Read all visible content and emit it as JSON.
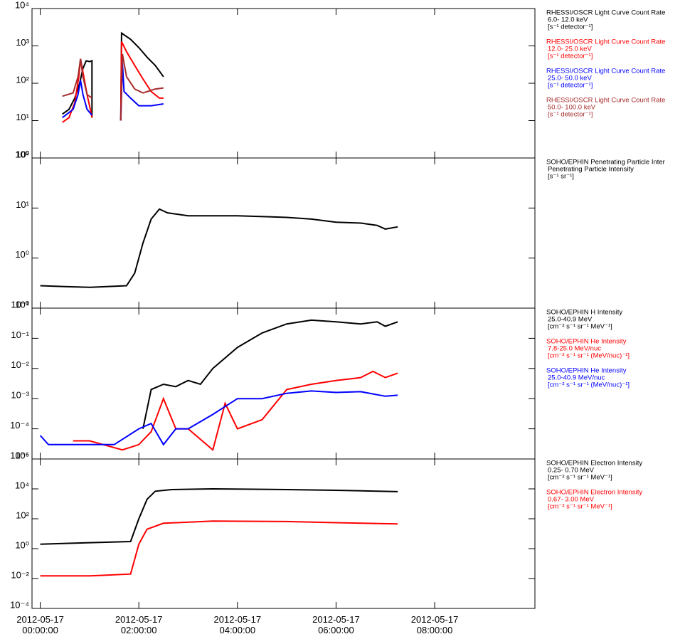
{
  "chart_data": [
    {
      "type": "line",
      "log_scale": true,
      "xlim": [
        "2012-05-16 23:50",
        "2012-05-17 10:02"
      ],
      "ylim": [
        1,
        10000
      ],
      "yticks": [
        {
          "value": 1,
          "label": "10⁰"
        },
        {
          "value": 10,
          "label": "10¹"
        },
        {
          "value": 100,
          "label": "10²"
        },
        {
          "value": 1000,
          "label": "10³"
        },
        {
          "value": 10000,
          "label": "10⁴"
        }
      ],
      "series": [
        {
          "name": "RHESSI/OSCR Light Curve Count Rate",
          "label": "6.0- 12.0 keV",
          "units": "[s⁻¹ detector⁻¹]",
          "color": "#000000",
          "x": [
            "2012-05-17 00:27",
            "2012-05-17 00:35",
            "2012-05-17 00:42",
            "2012-05-17 00:48",
            "2012-05-17 00:52",
            "2012-05-17 00:56",
            "2012-05-17 01:00",
            "2012-05-17 01:03",
            "2012-05-17 01:03",
            "2012-05-17 01:20",
            "2012-05-17 01:38",
            "2012-05-17 01:39",
            "2012-05-17 01:50",
            "2012-05-17 02:00",
            "2012-05-17 02:10",
            "2012-05-17 02:20",
            "2012-05-17 02:30"
          ],
          "values": [
            15,
            20,
            40,
            100,
            250,
            400,
            380,
            400,
            12,
            null,
            10,
            2200,
            1500,
            900,
            500,
            300,
            150
          ]
        },
        {
          "name": "RHESSI/OSCR Light Curve Count Rate",
          "label": "12.0- 25.0 keV",
          "units": "[s⁻¹ detector⁻¹]",
          "color": "#ff0000",
          "x": [
            "2012-05-17 00:27",
            "2012-05-17 00:35",
            "2012-05-17 00:42",
            "2012-05-17 00:47",
            "2012-05-17 00:49",
            "2012-05-17 00:52",
            "2012-05-17 00:57",
            "2012-05-17 01:01",
            "2012-05-17 01:03",
            "2012-05-17 01:20",
            "2012-05-17 01:38",
            "2012-05-17 01:39",
            "2012-05-17 01:45",
            "2012-05-17 01:55",
            "2012-05-17 02:05",
            "2012-05-17 02:15",
            "2012-05-17 02:25",
            "2012-05-17 02:30"
          ],
          "values": [
            9,
            12,
            30,
            150,
            450,
            200,
            50,
            20,
            12,
            null,
            10,
            1300,
            700,
            300,
            130,
            60,
            40,
            40
          ]
        },
        {
          "name": "RHESSI/OSCR Light Curve Count Rate",
          "label": "25.0- 50.0 keV",
          "units": "[s⁻¹ detector⁻¹]",
          "color": "#0000ff",
          "x": [
            "2012-05-17 00:27",
            "2012-05-17 00:40",
            "2012-05-17 00:46",
            "2012-05-17 00:49",
            "2012-05-17 00:52",
            "2012-05-17 00:57",
            "2012-05-17 01:03",
            "2012-05-17 01:20",
            "2012-05-17 01:38",
            "2012-05-17 01:40",
            "2012-05-17 01:42",
            "2012-05-17 01:50",
            "2012-05-17 02:00",
            "2012-05-17 02:15",
            "2012-05-17 02:30"
          ],
          "values": [
            12,
            20,
            50,
            120,
            50,
            20,
            14,
            null,
            10,
            350,
            60,
            40,
            25,
            25,
            28
          ]
        },
        {
          "name": "RHESSI/OSCR Light Curve Count Rate",
          "label": "50.0- 100.0 keV",
          "units": "[s⁻¹ detector⁻¹]",
          "color": "#a52a2a",
          "x": [
            "2012-05-17 00:27",
            "2012-05-17 00:40",
            "2012-05-17 00:46",
            "2012-05-17 00:49",
            "2012-05-17 00:52",
            "2012-05-17 00:57",
            "2012-05-17 01:03",
            "2012-05-17 01:20",
            "2012-05-17 01:38",
            "2012-05-17 01:40",
            "2012-05-17 01:45",
            "2012-05-17 01:55",
            "2012-05-17 02:05",
            "2012-05-17 02:20",
            "2012-05-17 02:30"
          ],
          "values": [
            45,
            55,
            150,
            450,
            150,
            50,
            40,
            null,
            10,
            600,
            150,
            70,
            55,
            70,
            75
          ]
        }
      ]
    },
    {
      "type": "line",
      "log_scale": true,
      "xlim": [
        "2012-05-16 23:50",
        "2012-05-17 10:02"
      ],
      "ylim": [
        0.1,
        100
      ],
      "yticks": [
        {
          "value": 0.1,
          "label": "10⁻¹"
        },
        {
          "value": 1,
          "label": "10⁰"
        },
        {
          "value": 10,
          "label": "10¹"
        },
        {
          "value": 100,
          "label": "10²"
        }
      ],
      "series": [
        {
          "name": "SOHO/EPHIN Penetrating Particle Inter",
          "label": "Penetrating Particle Intensity",
          "units": "[s⁻¹ sr⁻¹]",
          "color": "#000000",
          "x": [
            "2012-05-17 00:00",
            "2012-05-17 00:30",
            "2012-05-17 01:00",
            "2012-05-17 01:45",
            "2012-05-17 01:55",
            "2012-05-17 02:05",
            "2012-05-17 02:15",
            "2012-05-17 02:25",
            "2012-05-17 02:35",
            "2012-05-17 03:00",
            "2012-05-17 03:30",
            "2012-05-17 04:00",
            "2012-05-17 05:00",
            "2012-05-17 05:30",
            "2012-05-17 06:00",
            "2012-05-17 06:30",
            "2012-05-17 06:50",
            "2012-05-17 07:00",
            "2012-05-17 07:15"
          ],
          "values": [
            0.28,
            0.27,
            0.26,
            0.28,
            0.5,
            2,
            6,
            9.5,
            8,
            7,
            7,
            7,
            6.5,
            6,
            5.2,
            5,
            4.5,
            3.8,
            4.2
          ]
        }
      ]
    },
    {
      "type": "line",
      "log_scale": true,
      "xlim": [
        "2012-05-16 23:50",
        "2012-05-17 10:02"
      ],
      "ylim": [
        1e-05,
        1
      ],
      "yticks": [
        {
          "value": 1e-05,
          "label": "10⁻⁵"
        },
        {
          "value": 0.0001,
          "label": "10⁻⁴"
        },
        {
          "value": 0.001,
          "label": "10⁻³"
        },
        {
          "value": 0.01,
          "label": "10⁻²"
        },
        {
          "value": 0.1,
          "label": "10⁻¹"
        },
        {
          "value": 1,
          "label": "10⁰"
        }
      ],
      "series": [
        {
          "name": "SOHO/EPHIN H Intensity",
          "label": "25.0-40.9 MeV",
          "units": "[cm⁻² s⁻¹ sr⁻¹ MeV⁻¹]",
          "color": "#000000",
          "x": [
            "2012-05-17 02:05",
            "2012-05-17 02:15",
            "2012-05-17 02:30",
            "2012-05-17 02:45",
            "2012-05-17 03:00",
            "2012-05-17 03:15",
            "2012-05-17 03:30",
            "2012-05-17 04:00",
            "2012-05-17 04:30",
            "2012-05-17 05:00",
            "2012-05-17 05:30",
            "2012-05-17 06:00",
            "2012-05-17 06:30",
            "2012-05-17 06:50",
            "2012-05-17 07:00",
            "2012-05-17 07:15"
          ],
          "values": [
            0.0001,
            0.002,
            0.003,
            0.0025,
            0.004,
            0.003,
            0.01,
            0.05,
            0.15,
            0.3,
            0.4,
            0.35,
            0.3,
            0.35,
            0.25,
            0.35
          ]
        },
        {
          "name": "SOHO/EPHIN He Intensity",
          "label": "7.8-25.0 MeV/nuc",
          "units": "[cm⁻² s⁻¹ sr⁻¹ (MeV/nuc)⁻¹]",
          "color": "#ff0000",
          "x": [
            "2012-05-17 00:40",
            "2012-05-17 01:00",
            "2012-05-17 01:40",
            "2012-05-17 02:00",
            "2012-05-17 02:15",
            "2012-05-17 02:30",
            "2012-05-17 02:45",
            "2012-05-17 03:00",
            "2012-05-17 03:30",
            "2012-05-17 03:45",
            "2012-05-17 04:00",
            "2012-05-17 04:30",
            "2012-05-17 05:00",
            "2012-05-17 05:30",
            "2012-05-17 06:00",
            "2012-05-17 06:30",
            "2012-05-17 06:45",
            "2012-05-17 07:00",
            "2012-05-17 07:15"
          ],
          "values": [
            4e-05,
            4e-05,
            2e-05,
            3e-05,
            8e-05,
            0.001,
            0.0001,
            0.0001,
            2e-05,
            0.0007,
            0.0001,
            0.0002,
            0.002,
            0.003,
            0.004,
            0.005,
            0.008,
            0.005,
            0.007
          ]
        },
        {
          "name": "SOHO/EPHIN He Intensity",
          "label": "25.0-40.9 MeV/nuc",
          "units": "[cm⁻² s⁻¹ sr⁻¹ (MeV/nuc)⁻¹]",
          "color": "#0000ff",
          "x": [
            "2012-05-17 00:00",
            "2012-05-17 00:10",
            "2012-05-17 00:35",
            "2012-05-17 01:00",
            "2012-05-17 01:30",
            "2012-05-17 02:00",
            "2012-05-17 02:15",
            "2012-05-17 02:30",
            "2012-05-17 02:45",
            "2012-05-17 03:00",
            "2012-05-17 03:30",
            "2012-05-17 04:00",
            "2012-05-17 04:30",
            "2012-05-17 05:00",
            "2012-05-17 05:30",
            "2012-05-17 06:00",
            "2012-05-17 06:30",
            "2012-05-17 07:00",
            "2012-05-17 07:15"
          ],
          "values": [
            6e-05,
            3e-05,
            3e-05,
            3e-05,
            3e-05,
            0.0001,
            0.00015,
            3e-05,
            0.0001,
            0.0001,
            0.0003,
            0.001,
            0.001,
            0.0015,
            0.0018,
            0.0016,
            0.0017,
            0.0012,
            0.0013
          ]
        }
      ]
    },
    {
      "type": "line",
      "log_scale": true,
      "xlim": [
        "2012-05-16 23:50",
        "2012-05-17 10:02"
      ],
      "ylim": [
        0.0001,
        1000000
      ],
      "yticks": [
        {
          "value": 0.0001,
          "label": "10⁻⁴"
        },
        {
          "value": 0.01,
          "label": "10⁻²"
        },
        {
          "value": 1,
          "label": "10⁰"
        },
        {
          "value": 100,
          "label": "10²"
        },
        {
          "value": 10000,
          "label": "10⁴"
        },
        {
          "value": 1000000,
          "label": "10⁶"
        }
      ],
      "xticks": [
        "2012-05-17 00:00:00",
        "2012-05-17 02:00:00",
        "2012-05-17 04:00:00",
        "2012-05-17 06:00:00",
        "2012-05-17 08:00:00"
      ],
      "series": [
        {
          "name": "SOHO/EPHIN Electron Intensity",
          "label": "0.25- 0.70 MeV",
          "units": "[cm⁻² s⁻¹ sr⁻¹ MeV⁻¹]",
          "color": "#000000",
          "x": [
            "2012-05-17 00:00",
            "2012-05-17 01:00",
            "2012-05-17 01:50",
            "2012-05-17 02:00",
            "2012-05-17 02:10",
            "2012-05-17 02:20",
            "2012-05-17 02:40",
            "2012-05-17 03:30",
            "2012-05-17 05:00",
            "2012-05-17 06:00",
            "2012-05-17 07:15"
          ],
          "values": [
            2,
            2.5,
            3,
            100,
            2000,
            7000,
            9000,
            10000,
            9000,
            8000,
            6500
          ]
        },
        {
          "name": "SOHO/EPHIN Electron Intensity",
          "label": "0.67- 3.00 MeV",
          "units": "[cm⁻² s⁻¹ sr⁻¹ MeV⁻¹]",
          "color": "#ff0000",
          "x": [
            "2012-05-17 00:00",
            "2012-05-17 01:00",
            "2012-05-17 01:50",
            "2012-05-17 02:00",
            "2012-05-17 02:10",
            "2012-05-17 02:30",
            "2012-05-17 03:30",
            "2012-05-17 05:00",
            "2012-05-17 06:00",
            "2012-05-17 07:15"
          ],
          "values": [
            0.015,
            0.015,
            0.02,
            2,
            20,
            50,
            70,
            65,
            55,
            45
          ]
        }
      ]
    }
  ]
}
